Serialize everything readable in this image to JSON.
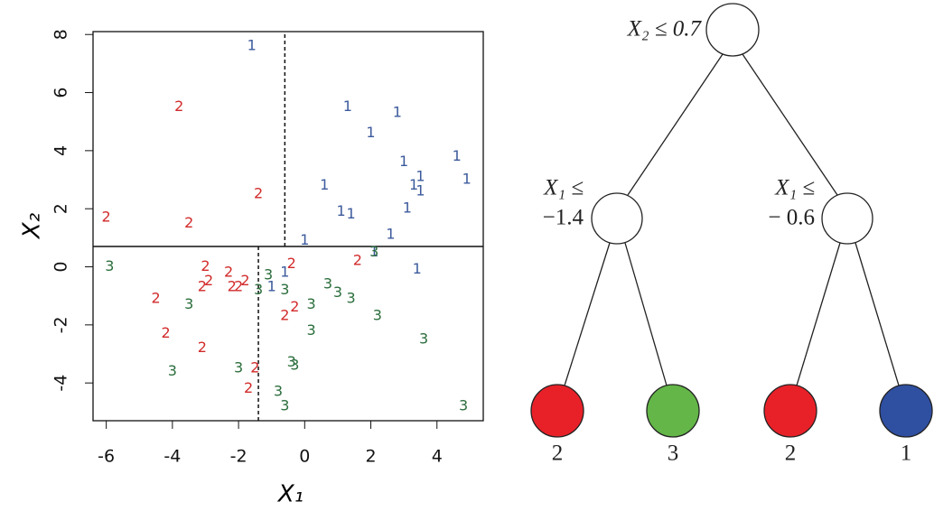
{
  "chart_data": {
    "type": "scatter",
    "x_label": "X₁",
    "y_label": "X₂",
    "xlim": [
      -6.4,
      5.4
    ],
    "ylim": [
      -5.3,
      8.1
    ],
    "xticks": [
      -6,
      -4,
      -2,
      0,
      2,
      4
    ],
    "yticks": [
      -4,
      -2,
      0,
      2,
      4,
      6,
      8
    ],
    "series": [
      {
        "name": "1",
        "color": "#3c5a9c",
        "x": [
          -1.6,
          1.3,
          2.8,
          2.0,
          4.6,
          3.0,
          3.5,
          4.9,
          0.6,
          3.3,
          3.5,
          3.1,
          1.1,
          1.4,
          2.6,
          0.0,
          2.1,
          3.4,
          -0.6,
          -1.0
        ],
        "values": [
          7.6,
          5.5,
          5.3,
          4.6,
          3.8,
          3.6,
          3.1,
          3.0,
          2.8,
          2.8,
          2.6,
          2.0,
          1.9,
          1.8,
          1.1,
          0.9,
          0.5,
          -0.1,
          -0.2,
          -0.7
        ]
      },
      {
        "name": "2",
        "color": "#d22a2a",
        "x": [
          -3.8,
          -1.4,
          -6.0,
          -3.5,
          -3.0,
          -2.3,
          -2.9,
          -3.1,
          -1.8,
          -2.2,
          -2.0,
          -0.4,
          1.6,
          -4.5,
          -0.6,
          -0.3,
          -4.2,
          -3.1,
          -1.5,
          -1.7
        ],
        "values": [
          5.5,
          2.5,
          1.7,
          1.5,
          0.0,
          -0.2,
          -0.5,
          -0.7,
          -0.5,
          -0.7,
          -0.7,
          0.1,
          0.2,
          -1.1,
          -1.7,
          -1.4,
          -2.3,
          -2.8,
          -3.5,
          -4.2
        ]
      },
      {
        "name": "3",
        "color": "#2b6e3c",
        "x": [
          -5.9,
          -1.1,
          -1.4,
          -0.6,
          0.7,
          1.0,
          1.4,
          -3.5,
          0.2,
          2.2,
          0.2,
          3.6,
          -4.0,
          -2.0,
          -0.4,
          -0.3,
          -0.8,
          -0.6,
          4.8,
          2.1
        ],
        "values": [
          0.0,
          -0.3,
          -0.8,
          -0.8,
          -0.6,
          -0.9,
          -1.1,
          -1.3,
          -1.3,
          -1.7,
          -2.2,
          -2.5,
          -3.6,
          -3.5,
          -3.3,
          -3.4,
          -4.3,
          -4.8,
          -4.8,
          0.5
        ]
      }
    ],
    "splits": [
      {
        "axis": "y",
        "value": 0.7
      },
      {
        "axis": "x",
        "value": -0.6,
        "side": "upper"
      },
      {
        "axis": "x",
        "value": -1.4,
        "side": "lower"
      }
    ]
  },
  "tree": {
    "root": "X₂ ≤ 0.7",
    "splits": [
      [
        "X₁ ≤",
        "−1.4"
      ],
      [
        "X₁ ≤",
        "− 0.6"
      ]
    ],
    "leaves": [
      {
        "label": "2",
        "color": "#e82129"
      },
      {
        "label": "3",
        "color": "#63b647"
      },
      {
        "label": "2",
        "color": "#e82129"
      },
      {
        "label": "1",
        "color": "#2f4fa1"
      }
    ]
  }
}
